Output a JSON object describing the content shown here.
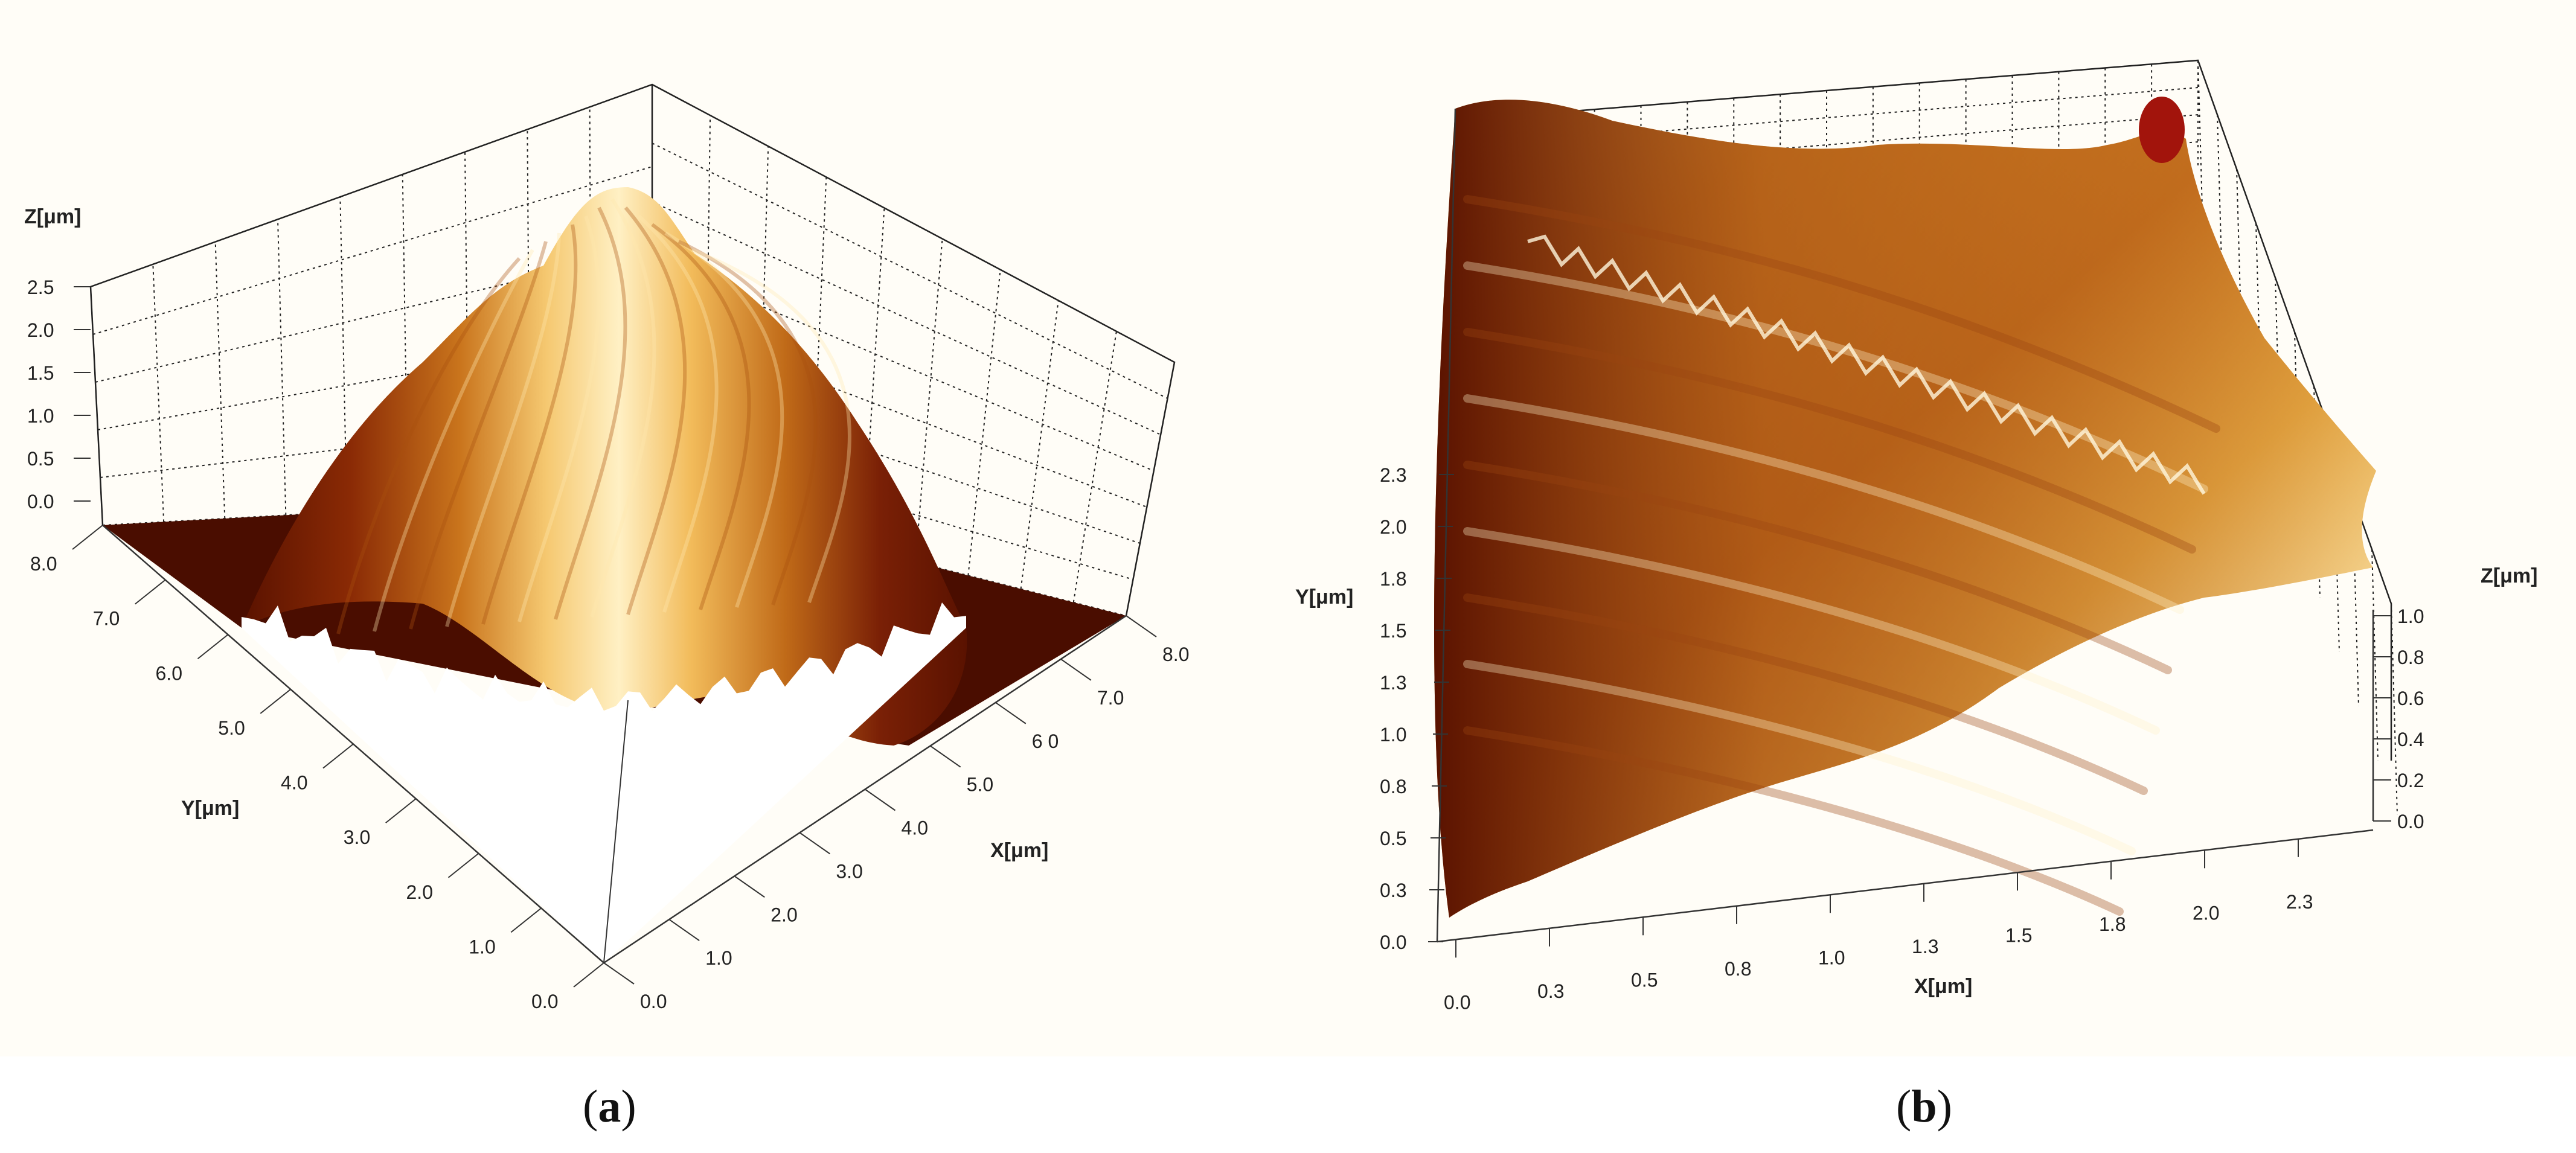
{
  "colors": {
    "dark": "#4a0d00",
    "mid": "#b0520e",
    "bright": "#f3c46a",
    "pale": "#fff2c8",
    "grid": "#222222",
    "axis": "#333333",
    "background": "#fffdf7"
  },
  "chart_data": [
    {
      "type": "surface3d",
      "panel_caption": "a",
      "title": "",
      "xlabel": "X[μm]",
      "ylabel": "Y[μm]",
      "zlabel": "Z[μm]",
      "x_ticks": [
        "0.0",
        "1.0",
        "2.0",
        "3.0",
        "4.0",
        "5.0",
        "6 0",
        "7.0",
        "8.0"
      ],
      "y_ticks": [
        "0.0",
        "1.0",
        "2.0",
        "3.0",
        "4.0",
        "5.0",
        "6.0",
        "7.0",
        "8.0"
      ],
      "z_ticks": [
        "0.0",
        "0.5",
        "1.0",
        "1.5",
        "2.0",
        "2.5"
      ],
      "xlim": [
        0,
        8.0
      ],
      "ylim": [
        0,
        8.0
      ],
      "zlim": [
        0,
        2.5
      ],
      "grid": true,
      "surface": {
        "shape": "single ridge running along Y, centered in X, flat base elsewhere",
        "peak_height": 2.35,
        "ridge_center_x": 4.2,
        "ridge_width": 2.6,
        "base_height": 0.0
      }
    },
    {
      "type": "surface3d",
      "panel_caption": "b",
      "title": "",
      "xlabel": "X[μm]",
      "ylabel": "Y[μm]",
      "zlabel": "Z[μm]",
      "x_ticks": [
        "0.0",
        "0.3",
        "0.5",
        "0.8",
        "1.0",
        "1.3",
        "1.5",
        "1.8",
        "2.0",
        "2.3"
      ],
      "y_ticks": [
        "0.0",
        "0.3",
        "0.5",
        "0.8",
        "1.0",
        "1.3",
        "1.5",
        "1.8",
        "2.0",
        "2.3"
      ],
      "z_ticks": [
        "0.0",
        "0.2",
        "0.4",
        "0.6",
        "0.8",
        "1.0"
      ],
      "xlim": [
        0,
        2.5
      ],
      "ylim": [
        0,
        2.5
      ],
      "zlim": [
        0,
        1.0
      ],
      "grid": true,
      "surface": {
        "shape": "rough tilted surface with diagonal ridges",
        "mean_height": 0.55,
        "max_height": 1.0,
        "min_height": 0.05
      }
    }
  ]
}
